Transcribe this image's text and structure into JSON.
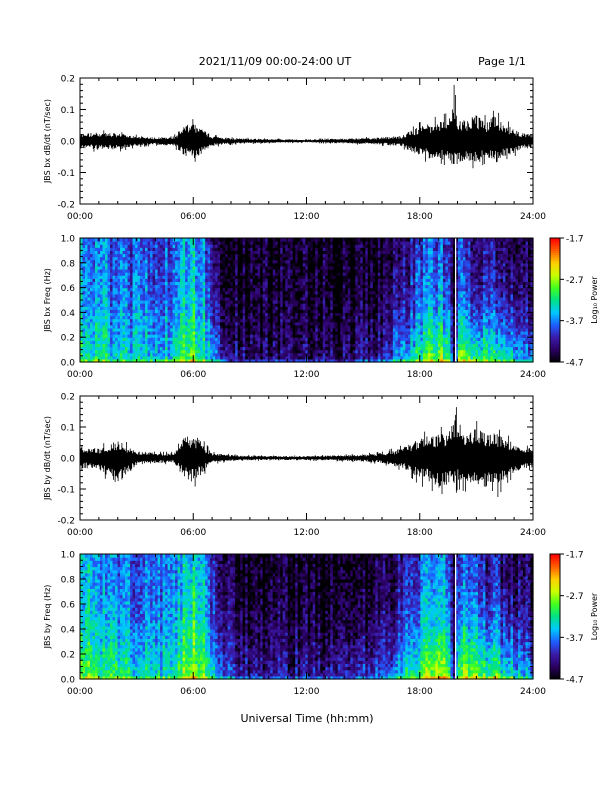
{
  "header": {
    "date_range": "2021/11/09  00:00-24:00 UT",
    "page": "Page 1/1"
  },
  "xlabel": "Universal Time (hh:mm)",
  "x_ticks": [
    "00:00",
    "06:00",
    "12:00",
    "18:00",
    "24:00"
  ],
  "colorbar": {
    "label": "Log₁₀ Power",
    "ticks": [
      "-1.7",
      "-2.7",
      "-3.7",
      "-4.7"
    ],
    "range": [
      -4.7,
      -1.7
    ],
    "colors": [
      "#000000",
      "#2a0060",
      "#3a1aa8",
      "#1f5cff",
      "#00c8ff",
      "#00e08a",
      "#40ff20",
      "#c8ff00",
      "#ffd000",
      "#ff6000",
      "#ff0000"
    ]
  },
  "colors": {
    "trace": "#000000",
    "white_line": "#ffffff"
  },
  "chart_data": [
    {
      "type": "line",
      "title": "",
      "ylabel": "JBS bx dB/dt (nT/sec)",
      "xlabel": "",
      "xlim": [
        0,
        24
      ],
      "ylim": [
        -0.2,
        0.2
      ],
      "y_ticks": [
        "-0.2",
        "-0.1",
        "0.0",
        "0.1",
        "0.2"
      ],
      "x": [
        0,
        1,
        2,
        3,
        4,
        5,
        5.5,
        6,
        6.5,
        7,
        8,
        9,
        10,
        11,
        12,
        13,
        14,
        15,
        16,
        17,
        17.5,
        18,
        18.5,
        19,
        19.5,
        19.9,
        20,
        20.5,
        21,
        21.5,
        22,
        22.5,
        23,
        23.5,
        24
      ],
      "y_max": [
        0.03,
        0.035,
        0.03,
        0.02,
        0.015,
        0.02,
        0.06,
        0.07,
        0.05,
        0.02,
        0.012,
        0.01,
        0.008,
        0.007,
        0.006,
        0.008,
        0.01,
        0.012,
        0.015,
        0.02,
        0.04,
        0.06,
        0.07,
        0.08,
        0.09,
        0.2,
        0.1,
        0.09,
        0.11,
        0.08,
        0.1,
        0.07,
        0.05,
        0.03,
        0.03
      ],
      "y_min": [
        -0.03,
        -0.035,
        -0.035,
        -0.02,
        -0.015,
        -0.02,
        -0.06,
        -0.07,
        -0.05,
        -0.02,
        -0.012,
        -0.01,
        -0.008,
        -0.007,
        -0.006,
        -0.008,
        -0.01,
        -0.012,
        -0.015,
        -0.02,
        -0.04,
        -0.06,
        -0.07,
        -0.07,
        -0.08,
        -0.1,
        -0.09,
        -0.08,
        -0.09,
        -0.07,
        -0.09,
        -0.06,
        -0.05,
        -0.03,
        -0.03
      ]
    },
    {
      "type": "heatmap",
      "title": "",
      "ylabel": "JBS bx Freq (Hz)",
      "xlabel": "",
      "xlim": [
        0,
        24
      ],
      "ylim": [
        0,
        1.0
      ],
      "y_ticks": [
        "0.0",
        "0.2",
        "0.4",
        "0.6",
        "0.8",
        "1.0"
      ],
      "x": [
        0,
        1,
        2,
        3,
        4,
        5,
        5.5,
        6,
        6.5,
        7,
        8,
        9,
        10,
        11,
        12,
        13,
        14,
        15,
        16,
        17,
        17.5,
        18,
        18.5,
        19,
        19.5,
        19.9,
        20,
        20.5,
        21,
        21.5,
        22,
        22.5,
        23,
        23.5,
        24
      ],
      "log10_power_low_freq": [
        -3.2,
        -3.2,
        -3.3,
        -3.4,
        -3.4,
        -3.3,
        -2.8,
        -2.8,
        -3.0,
        -3.5,
        -4.2,
        -4.3,
        -4.4,
        -4.4,
        -4.4,
        -4.3,
        -4.3,
        -4.2,
        -4.2,
        -3.6,
        -3.4,
        -3.1,
        -2.9,
        -2.8,
        -2.7,
        -4.7,
        -2.8,
        -2.9,
        -2.9,
        -3.1,
        -3.0,
        -3.3,
        -3.4,
        -3.6,
        -3.7
      ],
      "log10_power_high_freq": [
        -3.7,
        -3.8,
        -3.8,
        -3.9,
        -3.9,
        -3.8,
        -3.5,
        -3.5,
        -3.6,
        -4.3,
        -4.6,
        -4.6,
        -4.6,
        -4.6,
        -4.6,
        -4.6,
        -4.6,
        -4.6,
        -4.6,
        -4.4,
        -4.2,
        -4.0,
        -3.9,
        -3.9,
        -3.9,
        -4.7,
        -4.0,
        -4.1,
        -4.2,
        -4.3,
        -4.2,
        -4.4,
        -4.5,
        -4.5,
        -4.5
      ]
    },
    {
      "type": "line",
      "title": "",
      "ylabel": "JBS by dB/dt (nT/sec)",
      "xlabel": "",
      "xlim": [
        0,
        24
      ],
      "ylim": [
        -0.2,
        0.2
      ],
      "y_ticks": [
        "-0.2",
        "-0.1",
        "0.0",
        "0.1",
        "0.2"
      ],
      "x": [
        0,
        1,
        2,
        3,
        4,
        5,
        5.5,
        6,
        6.5,
        7,
        8,
        9,
        10,
        11,
        12,
        13,
        14,
        15,
        16,
        17,
        17.5,
        18,
        18.5,
        19,
        19.5,
        19.9,
        20,
        20.5,
        21,
        21.5,
        22,
        22.5,
        23,
        23.5,
        24
      ],
      "y_max": [
        0.04,
        0.04,
        0.07,
        0.03,
        0.02,
        0.02,
        0.08,
        0.1,
        0.06,
        0.02,
        0.012,
        0.01,
        0.008,
        0.008,
        0.008,
        0.01,
        0.012,
        0.015,
        0.02,
        0.04,
        0.06,
        0.08,
        0.09,
        0.1,
        0.1,
        0.2,
        0.11,
        0.1,
        0.12,
        0.1,
        0.1,
        0.08,
        0.06,
        0.04,
        0.04
      ],
      "y_min": [
        -0.04,
        -0.045,
        -0.11,
        -0.03,
        -0.02,
        -0.02,
        -0.08,
        -0.1,
        -0.06,
        -0.02,
        -0.012,
        -0.01,
        -0.008,
        -0.008,
        -0.008,
        -0.01,
        -0.012,
        -0.015,
        -0.02,
        -0.04,
        -0.06,
        -0.09,
        -0.1,
        -0.12,
        -0.11,
        -0.12,
        -0.1,
        -0.11,
        -0.13,
        -0.12,
        -0.14,
        -0.09,
        -0.06,
        -0.04,
        -0.04
      ]
    },
    {
      "type": "heatmap",
      "title": "",
      "ylabel": "JBS by Freq (Hz)",
      "xlabel": "Universal Time (hh:mm)",
      "xlim": [
        0,
        24
      ],
      "ylim": [
        0,
        1.0
      ],
      "y_ticks": [
        "0.0",
        "0.2",
        "0.4",
        "0.6",
        "0.8",
        "1.0"
      ],
      "x": [
        0,
        1,
        2,
        3,
        4,
        5,
        5.5,
        6,
        6.5,
        7,
        8,
        9,
        10,
        11,
        12,
        13,
        14,
        15,
        16,
        17,
        17.5,
        18,
        18.5,
        19,
        19.5,
        19.9,
        20,
        20.5,
        21,
        21.5,
        22,
        22.5,
        23,
        23.5,
        24
      ],
      "log10_power_low_freq": [
        -2.9,
        -3.0,
        -3.0,
        -3.2,
        -3.3,
        -3.2,
        -2.7,
        -2.6,
        -2.8,
        -3.4,
        -4.0,
        -4.1,
        -4.2,
        -4.2,
        -4.2,
        -4.1,
        -4.1,
        -4.0,
        -3.9,
        -3.4,
        -3.1,
        -2.9,
        -2.7,
        -2.6,
        -2.6,
        -4.7,
        -2.6,
        -2.7,
        -2.8,
        -2.9,
        -2.9,
        -3.1,
        -3.3,
        -3.5,
        -3.6
      ],
      "log10_power_high_freq": [
        -3.6,
        -3.6,
        -3.7,
        -3.8,
        -3.8,
        -3.7,
        -3.4,
        -3.3,
        -3.5,
        -4.2,
        -4.5,
        -4.6,
        -4.6,
        -4.6,
        -4.6,
        -4.6,
        -4.6,
        -4.6,
        -4.5,
        -4.3,
        -4.0,
        -3.8,
        -3.7,
        -3.7,
        -3.7,
        -4.7,
        -3.8,
        -3.9,
        -4.0,
        -4.1,
        -4.1,
        -4.3,
        -4.4,
        -4.4,
        -4.4
      ]
    }
  ]
}
